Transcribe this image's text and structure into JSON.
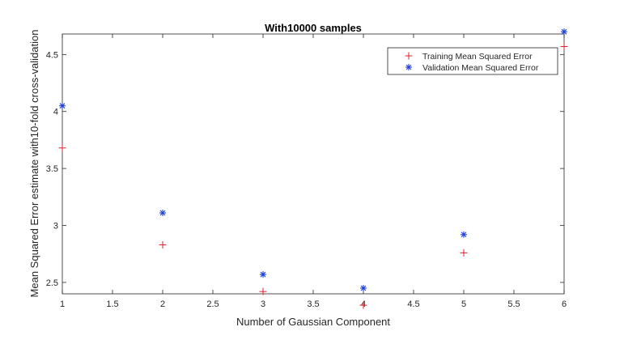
{
  "chart_data": {
    "type": "scatter",
    "title": "With10000 samples",
    "xlabel": "Number of Gaussian Component",
    "ylabel": "Mean Squared Error estimate with10-fold cross-validation",
    "xlim": [
      1,
      6
    ],
    "ylim": [
      2.4,
      4.68
    ],
    "xticks": [
      "1",
      "1.5",
      "2",
      "2.5",
      "3",
      "3.5",
      "4",
      "4.5",
      "5",
      "5.5",
      "6"
    ],
    "yticks": [
      "2.5",
      "3",
      "3.5",
      "4",
      "4.5"
    ],
    "grid": false,
    "legend_position": "top-right",
    "x": [
      1,
      2,
      3,
      4,
      5,
      6
    ],
    "series": [
      {
        "name": "Training Mean Squared Error",
        "marker": "+",
        "color": "#e0202a",
        "values": [
          3.68,
          2.83,
          2.42,
          2.3,
          2.76,
          4.57
        ]
      },
      {
        "name": "Validation Mean Squared Error",
        "marker": "*",
        "color": "#1f3fd6",
        "values": [
          4.05,
          3.11,
          2.57,
          2.45,
          2.92,
          4.7
        ]
      }
    ]
  }
}
